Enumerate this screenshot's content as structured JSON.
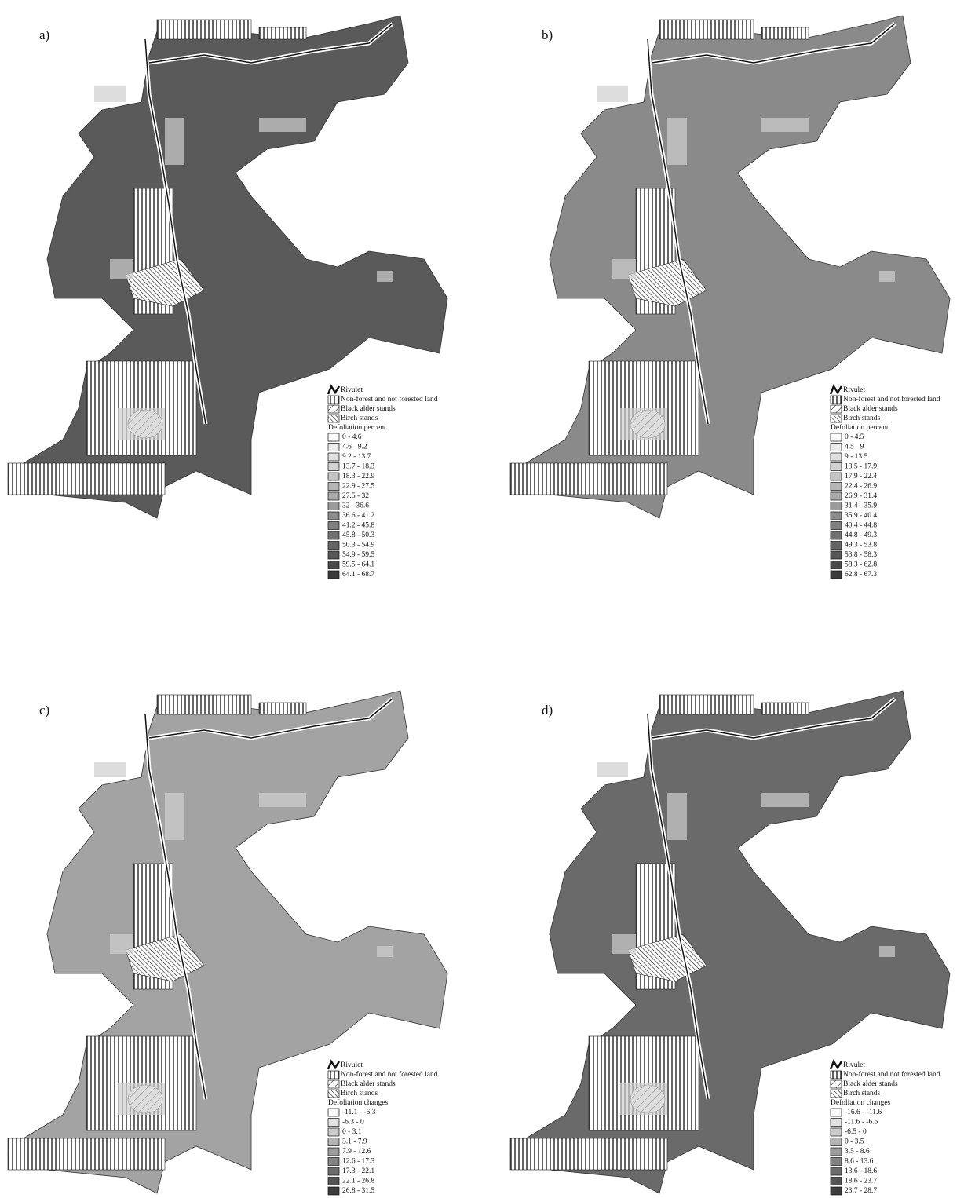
{
  "panels": [
    {
      "label": "a)",
      "legend": {
        "items": [
          "Rivulet",
          "Non-forest and not forested land",
          "Black alder stands",
          "Birch stands"
        ],
        "scale_title": "Defoliation percent",
        "classes": [
          "0 - 4.6",
          "4.6 - 9.2",
          "9.2 - 13.7",
          "13.7 - 18.3",
          "18.3 - 22.9",
          "22.9 - 27.5",
          "27.5 - 32",
          "32 - 36.6",
          "36.6 - 41.2",
          "41.2 - 45.8",
          "45.8 - 50.3",
          "50.3 - 54.9",
          "54.9 - 59.5",
          "59.5 - 64.1",
          "64.1 - 68.7"
        ]
      }
    },
    {
      "label": "b)",
      "legend": {
        "items": [
          "Rivulet",
          "Non-forest and not forested land",
          "Black alder stands",
          "Birch stands"
        ],
        "scale_title": "Defoliation percent",
        "classes": [
          "0 - 4.5",
          "4.5 - 9",
          "9 - 13.5",
          "13.5 - 17.9",
          "17.9 - 22.4",
          "22.4 - 26.9",
          "26.9 - 31.4",
          "31.4 - 35.9",
          "35.9 - 40.4",
          "40.4 - 44.8",
          "44.8 - 49.3",
          "49.3 - 53.8",
          "53.8 - 58.3",
          "58.3 - 62.8",
          "62.8 - 67.3"
        ]
      }
    },
    {
      "label": "c)",
      "legend": {
        "items": [
          "Rivulet",
          "Non-forest and not forested land",
          "Black alder stands",
          "Birch stands"
        ],
        "scale_title": "Defoliation changes",
        "classes": [
          "-11.1 - -6.3",
          "-6.3 - 0",
          "0 - 3.1",
          "3.1 - 7.9",
          "7.9 - 12.6",
          "12.6 - 17.3",
          "17.3 - 22.1",
          "22.1 - 26.8",
          "26.8 - 31.5"
        ]
      }
    },
    {
      "label": "d)",
      "legend": {
        "items": [
          "Rivulet",
          "Non-forest and not forested land",
          "Black alder stands",
          "Birch stands"
        ],
        "scale_title": "Defoliation changes",
        "classes": [
          "-16.6 - -11.6",
          "-11.6 - -6.5",
          "-6.5 - 0",
          "0 - 3.5",
          "3.5 - 8.6",
          "8.6 - 13.6",
          "13.6 - 18.6",
          "18.6 - 23.7",
          "23.7 - 28.7"
        ]
      }
    }
  ]
}
